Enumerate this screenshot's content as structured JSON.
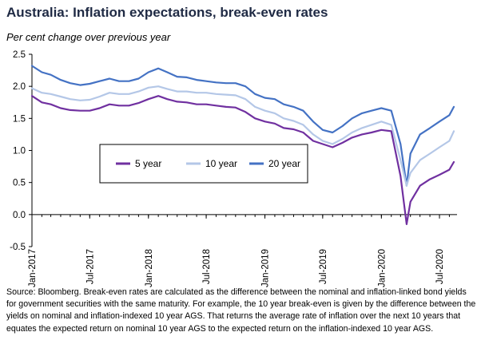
{
  "title": "Australia: Inflation expectations, break-even rates",
  "subtitle": "Per cent change over previous year",
  "source": "Source: Bloomberg. Break-even rates are calculated as the difference between the nominal and inflation-linked bond yields for government securities with the same maturity. For example, the 10 year break-even is given by the difference between the yields on nominal and inflation-indexed 10 year AGS. That returns the average rate of inflation over the next 10 years that equates the expected return on nominal 10 year AGS to the expected return on the inflation-indexed 10 year AGS.",
  "chart_data": {
    "type": "line",
    "ylim": [
      -0.5,
      2.5
    ],
    "yticks": [
      "2.5",
      "2.0",
      "1.5",
      "1.0",
      "0.5",
      "0.0",
      "-0.5"
    ],
    "x_ticks": [
      "Jan-2017",
      "Jul-2017",
      "Jan-2018",
      "Jul-2018",
      "Jan-2019",
      "Jul-2019",
      "Jan-2020",
      "Jul-2020"
    ],
    "legend_position": "middle-left",
    "series": [
      {
        "name": "5 year",
        "color": "#7030a0",
        "points": [
          [
            "2017-01-01",
            1.85
          ],
          [
            "2017-02-01",
            1.75
          ],
          [
            "2017-03-01",
            1.72
          ],
          [
            "2017-04-01",
            1.66
          ],
          [
            "2017-05-01",
            1.63
          ],
          [
            "2017-06-01",
            1.62
          ],
          [
            "2017-07-01",
            1.62
          ],
          [
            "2017-08-01",
            1.66
          ],
          [
            "2017-09-01",
            1.72
          ],
          [
            "2017-10-01",
            1.7
          ],
          [
            "2017-11-01",
            1.7
          ],
          [
            "2017-12-01",
            1.74
          ],
          [
            "2018-01-01",
            1.8
          ],
          [
            "2018-02-01",
            1.85
          ],
          [
            "2018-03-01",
            1.8
          ],
          [
            "2018-04-01",
            1.76
          ],
          [
            "2018-05-01",
            1.75
          ],
          [
            "2018-06-01",
            1.72
          ],
          [
            "2018-07-01",
            1.72
          ],
          [
            "2018-08-01",
            1.7
          ],
          [
            "2018-09-01",
            1.68
          ],
          [
            "2018-10-01",
            1.67
          ],
          [
            "2018-11-01",
            1.6
          ],
          [
            "2018-12-01",
            1.5
          ],
          [
            "2019-01-01",
            1.45
          ],
          [
            "2019-02-01",
            1.42
          ],
          [
            "2019-03-01",
            1.35
          ],
          [
            "2019-04-01",
            1.33
          ],
          [
            "2019-05-01",
            1.28
          ],
          [
            "2019-06-01",
            1.15
          ],
          [
            "2019-07-01",
            1.1
          ],
          [
            "2019-08-01",
            1.05
          ],
          [
            "2019-09-01",
            1.12
          ],
          [
            "2019-10-01",
            1.2
          ],
          [
            "2019-11-01",
            1.25
          ],
          [
            "2019-12-01",
            1.28
          ],
          [
            "2020-01-01",
            1.32
          ],
          [
            "2020-02-01",
            1.3
          ],
          [
            "2020-03-01",
            0.6
          ],
          [
            "2020-03-20",
            -0.15
          ],
          [
            "2020-04-01",
            0.2
          ],
          [
            "2020-05-01",
            0.45
          ],
          [
            "2020-06-01",
            0.55
          ],
          [
            "2020-07-01",
            0.62
          ],
          [
            "2020-08-01",
            0.7
          ],
          [
            "2020-08-15",
            0.82
          ]
        ]
      },
      {
        "name": "10 year",
        "color": "#b4c7e7",
        "points": [
          [
            "2017-01-01",
            1.97
          ],
          [
            "2017-02-01",
            1.9
          ],
          [
            "2017-03-01",
            1.88
          ],
          [
            "2017-04-01",
            1.84
          ],
          [
            "2017-05-01",
            1.8
          ],
          [
            "2017-06-01",
            1.78
          ],
          [
            "2017-07-01",
            1.79
          ],
          [
            "2017-08-01",
            1.84
          ],
          [
            "2017-09-01",
            1.9
          ],
          [
            "2017-10-01",
            1.88
          ],
          [
            "2017-11-01",
            1.88
          ],
          [
            "2017-12-01",
            1.92
          ],
          [
            "2018-01-01",
            1.98
          ],
          [
            "2018-02-01",
            2.0
          ],
          [
            "2018-03-01",
            1.96
          ],
          [
            "2018-04-01",
            1.92
          ],
          [
            "2018-05-01",
            1.92
          ],
          [
            "2018-06-01",
            1.9
          ],
          [
            "2018-07-01",
            1.9
          ],
          [
            "2018-08-01",
            1.88
          ],
          [
            "2018-09-01",
            1.87
          ],
          [
            "2018-10-01",
            1.86
          ],
          [
            "2018-11-01",
            1.8
          ],
          [
            "2018-12-01",
            1.68
          ],
          [
            "2019-01-01",
            1.62
          ],
          [
            "2019-02-01",
            1.58
          ],
          [
            "2019-03-01",
            1.5
          ],
          [
            "2019-04-01",
            1.46
          ],
          [
            "2019-05-01",
            1.4
          ],
          [
            "2019-06-01",
            1.25
          ],
          [
            "2019-07-01",
            1.15
          ],
          [
            "2019-08-01",
            1.1
          ],
          [
            "2019-09-01",
            1.18
          ],
          [
            "2019-10-01",
            1.28
          ],
          [
            "2019-11-01",
            1.35
          ],
          [
            "2019-12-01",
            1.4
          ],
          [
            "2020-01-01",
            1.45
          ],
          [
            "2020-02-01",
            1.4
          ],
          [
            "2020-03-01",
            0.85
          ],
          [
            "2020-03-20",
            0.45
          ],
          [
            "2020-04-01",
            0.65
          ],
          [
            "2020-05-01",
            0.85
          ],
          [
            "2020-06-01",
            0.95
          ],
          [
            "2020-07-01",
            1.05
          ],
          [
            "2020-08-01",
            1.15
          ],
          [
            "2020-08-15",
            1.3
          ]
        ]
      },
      {
        "name": "20 year",
        "color": "#4472c4",
        "points": [
          [
            "2017-01-01",
            2.32
          ],
          [
            "2017-02-01",
            2.22
          ],
          [
            "2017-03-01",
            2.18
          ],
          [
            "2017-04-01",
            2.1
          ],
          [
            "2017-05-01",
            2.05
          ],
          [
            "2017-06-01",
            2.02
          ],
          [
            "2017-07-01",
            2.04
          ],
          [
            "2017-08-01",
            2.08
          ],
          [
            "2017-09-01",
            2.12
          ],
          [
            "2017-10-01",
            2.08
          ],
          [
            "2017-11-01",
            2.08
          ],
          [
            "2017-12-01",
            2.12
          ],
          [
            "2018-01-01",
            2.22
          ],
          [
            "2018-02-01",
            2.28
          ],
          [
            "2018-03-01",
            2.22
          ],
          [
            "2018-04-01",
            2.15
          ],
          [
            "2018-05-01",
            2.14
          ],
          [
            "2018-06-01",
            2.1
          ],
          [
            "2018-07-01",
            2.08
          ],
          [
            "2018-08-01",
            2.06
          ],
          [
            "2018-09-01",
            2.05
          ],
          [
            "2018-10-01",
            2.05
          ],
          [
            "2018-11-01",
            2.0
          ],
          [
            "2018-12-01",
            1.88
          ],
          [
            "2019-01-01",
            1.82
          ],
          [
            "2019-02-01",
            1.8
          ],
          [
            "2019-03-01",
            1.72
          ],
          [
            "2019-04-01",
            1.68
          ],
          [
            "2019-05-01",
            1.62
          ],
          [
            "2019-06-01",
            1.45
          ],
          [
            "2019-07-01",
            1.32
          ],
          [
            "2019-08-01",
            1.28
          ],
          [
            "2019-09-01",
            1.38
          ],
          [
            "2019-10-01",
            1.5
          ],
          [
            "2019-11-01",
            1.58
          ],
          [
            "2019-12-01",
            1.62
          ],
          [
            "2020-01-01",
            1.66
          ],
          [
            "2020-02-01",
            1.62
          ],
          [
            "2020-03-01",
            1.1
          ],
          [
            "2020-03-20",
            0.45
          ],
          [
            "2020-04-01",
            0.95
          ],
          [
            "2020-05-01",
            1.25
          ],
          [
            "2020-06-01",
            1.35
          ],
          [
            "2020-07-01",
            1.45
          ],
          [
            "2020-08-01",
            1.55
          ],
          [
            "2020-08-15",
            1.68
          ]
        ]
      }
    ]
  }
}
